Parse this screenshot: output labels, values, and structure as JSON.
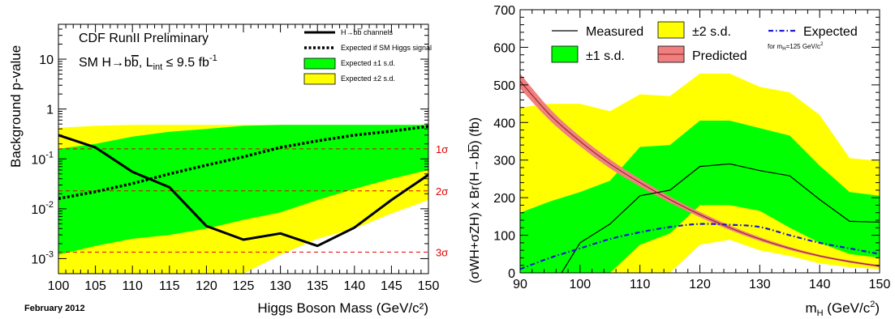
{
  "chart_data": [
    {
      "type": "line",
      "title": "CDF RunII Preliminary",
      "subtitle": {
        "prefix": "SM H→b",
        "bbar": "b",
        "mid": ", L",
        "sub": "int",
        "suffix": " ≤ 9.5 fb",
        "sup": "-1"
      },
      "xlabel": "Higgs Boson Mass (GeV/c²)",
      "ylabel": "Background p-value",
      "xlim": [
        100,
        150
      ],
      "ylim": [
        0.0005,
        50
      ],
      "yscale": "log",
      "footer": "February 2012",
      "x": [
        100,
        105,
        110,
        115,
        120,
        125,
        130,
        135,
        140,
        145,
        150
      ],
      "xticks": [
        "100",
        "105",
        "110",
        "115",
        "120",
        "125",
        "130",
        "135",
        "140",
        "145",
        "150"
      ],
      "yticks": [
        {
          "v": 0.001,
          "base": "10",
          "exp": "-3"
        },
        {
          "v": 0.01,
          "base": "10",
          "exp": "-2"
        },
        {
          "v": 0.1,
          "base": "10",
          "exp": "-1"
        },
        {
          "v": 1,
          "base": "1",
          "exp": ""
        },
        {
          "v": 10,
          "base": "10",
          "exp": ""
        }
      ],
      "series": [
        {
          "name": "H→bb̅ channels",
          "style": "solid",
          "values": [
            0.3,
            0.17,
            0.055,
            0.027,
            0.0045,
            0.0024,
            0.0032,
            0.0018,
            0.0042,
            0.015,
            0.048
          ]
        },
        {
          "name": "Expected if SM Higgs signal",
          "style": "dotted",
          "values": [
            0.016,
            0.022,
            0.032,
            0.05,
            0.075,
            0.11,
            0.17,
            0.23,
            0.3,
            0.36,
            0.45
          ]
        }
      ],
      "bands": [
        {
          "name": "Expected ±2 s.d.",
          "color": "#ffff00",
          "lower": [
            0.00025,
            0.0003,
            0.0003,
            0.00035,
            0.0004,
            0.0005,
            0.0012,
            0.0025,
            0.004,
            0.008,
            0.015
          ],
          "upper": [
            0.42,
            0.46,
            0.48,
            0.48,
            0.48,
            0.48,
            0.48,
            0.48,
            0.48,
            0.48,
            0.48
          ]
        },
        {
          "name": "Expected ±1 s.d.",
          "color": "#00ff00",
          "lower": [
            0.0012,
            0.0018,
            0.0025,
            0.003,
            0.004,
            0.006,
            0.0085,
            0.015,
            0.025,
            0.04,
            0.06
          ],
          "upper": [
            0.16,
            0.2,
            0.28,
            0.35,
            0.4,
            0.46,
            0.48,
            0.48,
            0.48,
            0.48,
            0.48
          ]
        }
      ],
      "sigma_lines": [
        {
          "label": "1σ",
          "value": 0.159
        },
        {
          "label": "2σ",
          "value": 0.0228
        },
        {
          "label": "3σ",
          "value": 0.00135
        }
      ],
      "legend": {
        "position": "top-right",
        "items": [
          "H→bb̅ channels",
          "Expected if SM Higgs signal",
          "Expected ±1 s.d.",
          "Expected ±2 s.d."
        ]
      },
      "colors": {
        "sigma": "#e00000",
        "line": "#000000"
      }
    },
    {
      "type": "line",
      "xlabel": {
        "prefix": "m",
        "sub": "H",
        "suffix": " (GeV/c",
        "sup": "2",
        "end": ")"
      },
      "ylabel": "(σWH+σZH) x Br(H→bb̅) (fb)",
      "xlim": [
        90,
        150
      ],
      "ylim": [
        0,
        700
      ],
      "xticks": [
        "90",
        "100",
        "110",
        "120",
        "130",
        "140",
        "150"
      ],
      "yticks": [
        "0",
        "100",
        "200",
        "300",
        "400",
        "500",
        "600",
        "700"
      ],
      "x": [
        90,
        95,
        100,
        105,
        110,
        115,
        120,
        125,
        130,
        135,
        140,
        145,
        150
      ],
      "series": [
        {
          "name": "Measured",
          "style": "solid",
          "values": [
            -150,
            -50,
            80,
            130,
            205,
            220,
            283,
            290,
            272,
            258,
            195,
            137,
            135
          ]
        },
        {
          "name": "Expected",
          "style": "dashdot",
          "values": [
            10,
            40,
            65,
            90,
            108,
            122,
            130,
            128,
            122,
            100,
            80,
            65,
            50
          ]
        },
        {
          "name": "Predicted",
          "style": "band-center",
          "values": [
            510,
            420,
            350,
            290,
            240,
            195,
            155,
            120,
            90,
            65,
            45,
            30,
            18
          ]
        }
      ],
      "bands": [
        {
          "name": "±2 s.d.",
          "color": "#ffff00",
          "lower": [
            0,
            0,
            0,
            0,
            0,
            0,
            75,
            88,
            60,
            45,
            25,
            15,
            10
          ],
          "upper": [
            440,
            450,
            450,
            430,
            475,
            470,
            530,
            530,
            495,
            480,
            420,
            305,
            298
          ]
        },
        {
          "name": "±1 s.d.",
          "color": "#00ff00",
          "lower": [
            0,
            0,
            0,
            0,
            75,
            105,
            180,
            180,
            165,
            120,
            80,
            50,
            40
          ],
          "upper": [
            160,
            190,
            215,
            245,
            335,
            340,
            405,
            405,
            385,
            365,
            285,
            215,
            205
          ]
        },
        {
          "name": "Predicted",
          "color": "#f08080",
          "lower": [
            490,
            405,
            337,
            278,
            230,
            187,
            148,
            114,
            85,
            61,
            42,
            27,
            15
          ],
          "upper": [
            530,
            436,
            363,
            302,
            250,
            203,
            162,
            126,
            95,
            69,
            48,
            33,
            21
          ]
        }
      ],
      "legend": {
        "position": "top",
        "items": [
          "Measured",
          "±2 s.d.",
          "Expected",
          "±1 s.d.",
          "Predicted"
        ],
        "expected_note": {
          "prefix": "for m",
          "sub": "H",
          "mid": "=125 GeV/c",
          "sup": "2"
        }
      }
    }
  ]
}
